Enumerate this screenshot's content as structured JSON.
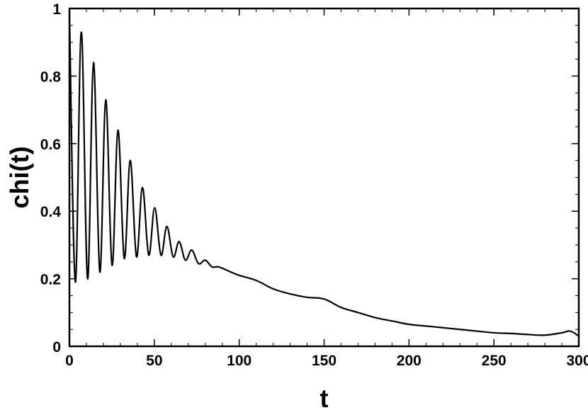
{
  "chart_data": {
    "type": "line",
    "title": "",
    "xlabel": "t",
    "ylabel": "chi(t)",
    "xlim": [
      0,
      300
    ],
    "ylim": [
      0,
      1
    ],
    "x_ticks": [
      0,
      50,
      100,
      150,
      200,
      250,
      300
    ],
    "x_tick_labels": [
      "0",
      "50",
      "100",
      "150",
      "200",
      "250",
      "300"
    ],
    "y_ticks": [
      0,
      0.2,
      0.4,
      0.6,
      0.8,
      1
    ],
    "y_tick_labels": [
      "0",
      "0.2",
      "0.4",
      "0.6",
      "0.8",
      "1"
    ],
    "grid": false,
    "line_color": "#000000",
    "series": [
      {
        "x": [
          0,
          3.5,
          7,
          10.7,
          14.2,
          17.9,
          21.4,
          25.1,
          28.6,
          32.3,
          35.8,
          39.5,
          43.0,
          46.7,
          50.2,
          53.9,
          57.4,
          61.1,
          64.6,
          68.3,
          72,
          76,
          80,
          84,
          88,
          95,
          100,
          110,
          120,
          130,
          140,
          150,
          160,
          170,
          180,
          190,
          200,
          210,
          220,
          230,
          240,
          250,
          260,
          270,
          280,
          290,
          295,
          300
        ],
        "y": [
          0.99,
          0.19,
          0.93,
          0.2,
          0.84,
          0.22,
          0.73,
          0.24,
          0.64,
          0.26,
          0.55,
          0.265,
          0.47,
          0.27,
          0.41,
          0.27,
          0.355,
          0.265,
          0.31,
          0.255,
          0.285,
          0.245,
          0.255,
          0.235,
          0.235,
          0.22,
          0.21,
          0.195,
          0.17,
          0.155,
          0.145,
          0.14,
          0.115,
          0.1,
          0.085,
          0.075,
          0.065,
          0.06,
          0.055,
          0.05,
          0.045,
          0.04,
          0.038,
          0.035,
          0.033,
          0.04,
          0.045,
          0.03
        ]
      }
    ]
  }
}
